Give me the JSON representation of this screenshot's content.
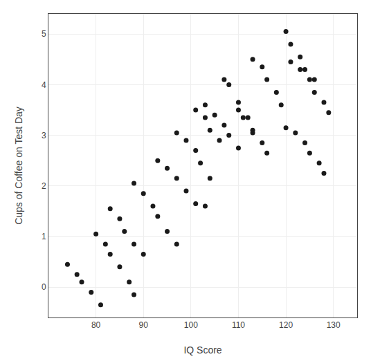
{
  "chart_data": {
    "type": "scatter",
    "xlabel": "IQ Score",
    "ylabel": "Cups of Coffee on Test Day",
    "xlim": [
      70,
      135
    ],
    "ylim": [
      -0.6,
      5.4
    ],
    "xticks": [
      80,
      90,
      100,
      110,
      120,
      130
    ],
    "yticks": [
      0,
      1,
      2,
      3,
      4,
      5
    ],
    "grid": true,
    "color": "#1a1a1a",
    "series": [
      {
        "x": [
          74,
          76,
          77,
          79,
          81
        ],
        "values": [
          0.45,
          0.25,
          0.1,
          -0.1,
          -0.35
        ]
      },
      {
        "x": [
          80,
          82,
          83,
          85,
          87,
          88
        ],
        "values": [
          1.05,
          0.85,
          0.65,
          0.4,
          0.1,
          -0.15
        ]
      },
      {
        "x": [
          83,
          85,
          86,
          88,
          90
        ],
        "values": [
          1.55,
          1.35,
          1.1,
          0.85,
          0.65
        ]
      },
      {
        "x": [
          88,
          90,
          92,
          93,
          95,
          97
        ],
        "values": [
          2.05,
          1.85,
          1.6,
          1.4,
          1.1,
          0.85
        ]
      },
      {
        "x": [
          93,
          95,
          97,
          99,
          101,
          103
        ],
        "values": [
          2.5,
          2.35,
          2.15,
          1.9,
          1.65,
          1.6
        ]
      },
      {
        "x": [
          97,
          99,
          101,
          102,
          104
        ],
        "values": [
          3.05,
          2.9,
          2.7,
          2.45,
          2.15
        ]
      },
      {
        "x": [
          101,
          103,
          104,
          106
        ],
        "values": [
          3.5,
          3.35,
          3.1,
          2.9
        ]
      },
      {
        "x": [
          103,
          105,
          107,
          108,
          110
        ],
        "values": [
          3.6,
          3.4,
          3.2,
          3.0,
          2.75
        ]
      },
      {
        "x": [
          107,
          108,
          110,
          111,
          113
        ],
        "values": [
          4.1,
          4.0,
          3.65,
          3.35,
          3.1
        ]
      },
      {
        "x": [
          110,
          112,
          113,
          115,
          116
        ],
        "values": [
          3.5,
          3.35,
          3.05,
          2.85,
          2.65
        ]
      },
      {
        "x": [
          113,
          115,
          116,
          118,
          119
        ],
        "values": [
          4.5,
          4.35,
          4.1,
          3.85,
          3.6
        ]
      },
      {
        "x": [
          120,
          121,
          123,
          124,
          126
        ],
        "values": [
          5.05,
          4.8,
          4.55,
          4.3,
          4.1
        ]
      },
      {
        "x": [
          120,
          122,
          124,
          125,
          127,
          128
        ],
        "values": [
          3.15,
          3.05,
          2.85,
          2.65,
          2.45,
          2.25
        ]
      },
      {
        "x": [
          121,
          123,
          125,
          126,
          128,
          129
        ],
        "values": [
          4.45,
          4.3,
          4.1,
          3.85,
          3.65,
          3.45
        ]
      }
    ]
  }
}
